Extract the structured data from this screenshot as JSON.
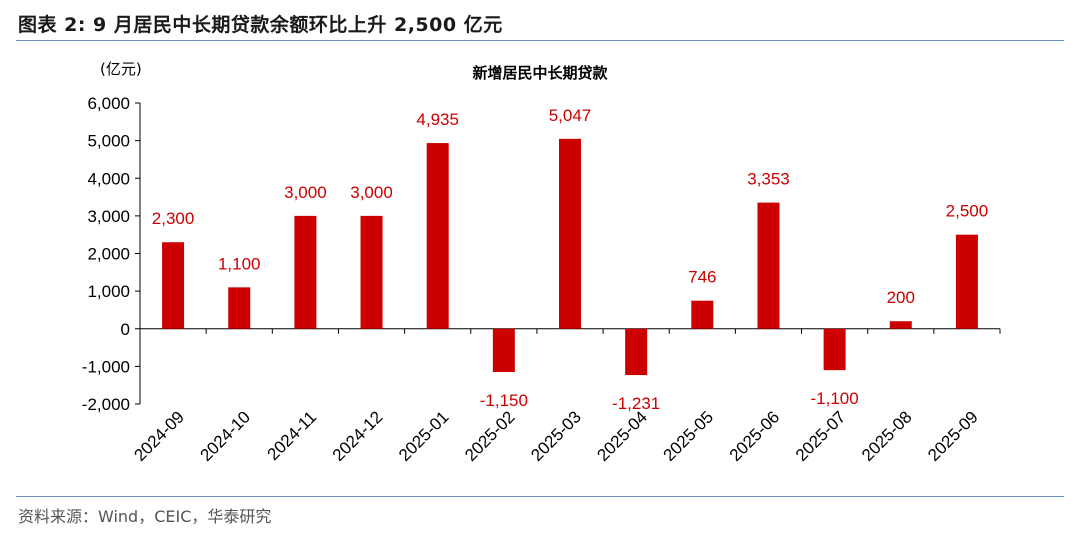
{
  "figure": {
    "title": "图表 2:   9 月居民中长期贷款余额环比上升 2,500 亿元",
    "source": "资料来源：Wind，CEIC，华泰研究"
  },
  "colors": {
    "bar": "#cc0000",
    "label": "#cc0000",
    "rule": "#6a8db8"
  },
  "chart_data": {
    "type": "bar",
    "title": "新增居民中长期贷款",
    "unit": "(亿元)",
    "xlabel": "",
    "ylabel": "",
    "categories": [
      "2024-09",
      "2024-10",
      "2024-11",
      "2024-12",
      "2025-01",
      "2025-02",
      "2025-03",
      "2025-04",
      "2025-05",
      "2025-06",
      "2025-07",
      "2025-08",
      "2025-09"
    ],
    "values": [
      2300,
      1100,
      3000,
      3000,
      4935,
      -1150,
      5047,
      -1231,
      746,
      3353,
      -1100,
      200,
      2500
    ],
    "value_labels": [
      "2,300",
      "1,100",
      "3,000",
      "3,000",
      "4,935",
      "-1,150",
      "5,047",
      "-1,231",
      "746",
      "3,353",
      "-1,100",
      "200",
      "2,500"
    ],
    "ylim": [
      -2000,
      6000
    ],
    "yticks": [
      6000,
      5000,
      4000,
      3000,
      2000,
      1000,
      0,
      -1000,
      -2000
    ],
    "ytick_labels": [
      "6,000",
      "5,000",
      "4,000",
      "3,000",
      "2,000",
      "1,000",
      "0",
      "-1,000",
      "-2,000"
    ],
    "grid": false,
    "legend": "none"
  }
}
